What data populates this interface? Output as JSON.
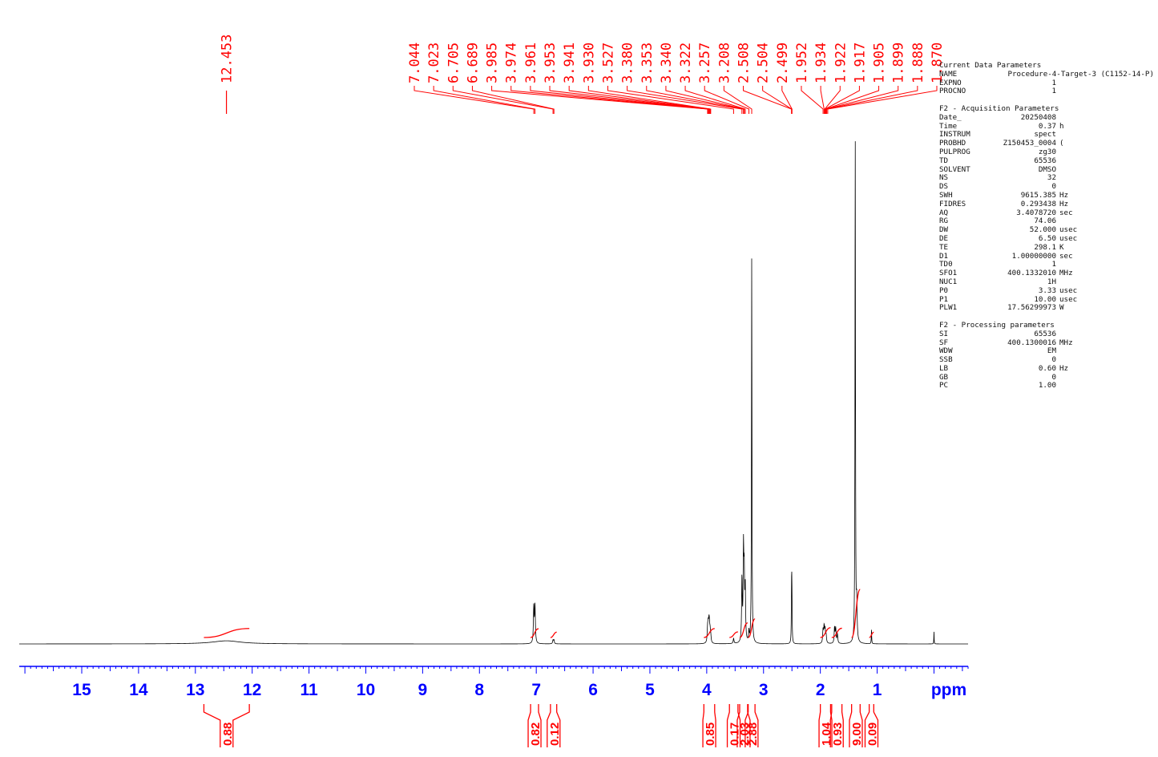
{
  "chart_data": {
    "type": "line",
    "title": "",
    "xlabel": "ppm",
    "ylabel": "",
    "xlim": [
      16.1,
      -0.6
    ],
    "x_reversed": true,
    "grid": false,
    "x_ticks": [
      "15",
      "14",
      "13",
      "12",
      "11",
      "10",
      "9",
      "8",
      "7",
      "6",
      "5",
      "4",
      "3",
      "2",
      "1",
      "ppm"
    ],
    "x_tick_values": [
      15,
      14,
      13,
      12,
      11,
      10,
      9,
      8,
      7,
      6,
      5,
      4,
      3,
      2,
      1
    ],
    "peak_labels": [
      "12.453",
      "7.044",
      "7.023",
      "6.705",
      "6.689",
      "3.985",
      "3.974",
      "3.961",
      "3.953",
      "3.941",
      "3.930",
      "3.527",
      "3.380",
      "3.353",
      "3.340",
      "3.322",
      "3.257",
      "3.208",
      "2.508",
      "2.504",
      "2.499",
      "1.952",
      "1.934",
      "1.922",
      "1.917",
      "1.905",
      "1.899",
      "1.888",
      "1.870"
    ],
    "peaks": [
      {
        "ppm": 12.453,
        "height": 0.006,
        "width": 0.3
      },
      {
        "ppm": 7.044,
        "height": 0.07,
        "width": 0.008
      },
      {
        "ppm": 7.023,
        "height": 0.07,
        "width": 0.008
      },
      {
        "ppm": 6.705,
        "height": 0.007,
        "width": 0.008
      },
      {
        "ppm": 6.689,
        "height": 0.007,
        "width": 0.008
      },
      {
        "ppm": 3.985,
        "height": 0.024,
        "width": 0.008
      },
      {
        "ppm": 3.974,
        "height": 0.03,
        "width": 0.008
      },
      {
        "ppm": 3.961,
        "height": 0.03,
        "width": 0.008
      },
      {
        "ppm": 3.953,
        "height": 0.024,
        "width": 0.008
      },
      {
        "ppm": 3.941,
        "height": 0.018,
        "width": 0.008
      },
      {
        "ppm": 3.93,
        "height": 0.012,
        "width": 0.008
      },
      {
        "ppm": 3.527,
        "height": 0.01,
        "width": 0.008
      },
      {
        "ppm": 3.38,
        "height": 0.12,
        "width": 0.007
      },
      {
        "ppm": 3.353,
        "height": 0.17,
        "width": 0.007
      },
      {
        "ppm": 3.34,
        "height": 0.12,
        "width": 0.007
      },
      {
        "ppm": 3.322,
        "height": 0.1,
        "width": 0.007
      },
      {
        "ppm": 3.257,
        "height": 0.02,
        "width": 0.007
      },
      {
        "ppm": 3.208,
        "height": 0.74,
        "width": 0.005
      },
      {
        "ppm": 2.508,
        "height": 0.06,
        "width": 0.004
      },
      {
        "ppm": 2.504,
        "height": 0.09,
        "width": 0.004
      },
      {
        "ppm": 2.499,
        "height": 0.06,
        "width": 0.004
      },
      {
        "ppm": 1.952,
        "height": 0.025,
        "width": 0.008
      },
      {
        "ppm": 1.934,
        "height": 0.03,
        "width": 0.008
      },
      {
        "ppm": 1.917,
        "height": 0.025,
        "width": 0.008
      },
      {
        "ppm": 1.899,
        "height": 0.015,
        "width": 0.008
      },
      {
        "ppm": 1.75,
        "height": 0.03,
        "width": 0.008
      },
      {
        "ppm": 1.73,
        "height": 0.028,
        "width": 0.008
      },
      {
        "ppm": 1.7,
        "height": 0.018,
        "width": 0.008
      },
      {
        "ppm": 1.386,
        "height": 0.98,
        "width": 0.005
      },
      {
        "ppm": 1.36,
        "height": 0.07,
        "width": 0.008
      },
      {
        "ppm": 1.1,
        "height": 0.027,
        "width": 0.004
      },
      {
        "ppm": 0.0,
        "height": 0.024,
        "width": 0.003
      }
    ],
    "integrals": [
      {
        "from": 12.85,
        "to": 12.05,
        "value": "0.88"
      },
      {
        "from": 7.1,
        "to": 6.96,
        "value": "0.82"
      },
      {
        "from": 6.75,
        "to": 6.64,
        "value": "0.12"
      },
      {
        "from": 4.05,
        "to": 3.86,
        "value": "0.85"
      },
      {
        "from": 3.6,
        "to": 3.45,
        "value": "0.17"
      },
      {
        "from": 3.42,
        "to": 3.28,
        "value": "2.03"
      },
      {
        "from": 3.27,
        "to": 3.15,
        "value": "2.88"
      },
      {
        "from": 2.0,
        "to": 1.82,
        "value": "1.04"
      },
      {
        "from": 1.8,
        "to": 1.62,
        "value": "0.93"
      },
      {
        "from": 1.45,
        "to": 1.3,
        "value": "9.00"
      },
      {
        "from": 1.14,
        "to": 1.06,
        "value": "0.09"
      }
    ],
    "colors": {
      "spectrum": "#000000",
      "annotations": "#ff0000",
      "axis": "#0000ff"
    }
  },
  "parameters": {
    "current": {
      "header": "Current Data Parameters",
      "name_key": "NAME",
      "name_value": "Procedure-4-Target-3 (C1152-14-P)",
      "rows": [
        {
          "k": "EXPNO",
          "v": "1",
          "u": ""
        },
        {
          "k": "PROCNO",
          "v": "1",
          "u": ""
        }
      ]
    },
    "acquisition": {
      "header": "F2 - Acquisition Parameters",
      "rows": [
        {
          "k": "Date_",
          "v": "20250408",
          "u": ""
        },
        {
          "k": "Time",
          "v": "0.37",
          "u": "h"
        },
        {
          "k": "INSTRUM",
          "v": "spect",
          "u": ""
        },
        {
          "k": "PROBHD",
          "v": "Z150453_0004",
          "u": "("
        },
        {
          "k": "PULPROG",
          "v": "zg30",
          "u": ""
        },
        {
          "k": "TD",
          "v": "65536",
          "u": ""
        },
        {
          "k": "SOLVENT",
          "v": "DMSO",
          "u": ""
        },
        {
          "k": "NS",
          "v": "32",
          "u": ""
        },
        {
          "k": "DS",
          "v": "0",
          "u": ""
        },
        {
          "k": "SWH",
          "v": "9615.385",
          "u": "Hz"
        },
        {
          "k": "FIDRES",
          "v": "0.293438",
          "u": "Hz"
        },
        {
          "k": "AQ",
          "v": "3.4078720",
          "u": "sec"
        },
        {
          "k": "RG",
          "v": "74.06",
          "u": ""
        },
        {
          "k": "DW",
          "v": "52.000",
          "u": "usec"
        },
        {
          "k": "DE",
          "v": "6.50",
          "u": "usec"
        },
        {
          "k": "TE",
          "v": "298.1",
          "u": "K"
        },
        {
          "k": "D1",
          "v": "1.00000000",
          "u": "sec"
        },
        {
          "k": "TD0",
          "v": "1",
          "u": ""
        },
        {
          "k": "SFO1",
          "v": "400.1332010",
          "u": "MHz"
        },
        {
          "k": "NUC1",
          "v": "1H",
          "u": ""
        },
        {
          "k": "P0",
          "v": "3.33",
          "u": "usec"
        },
        {
          "k": "P1",
          "v": "10.00",
          "u": "usec"
        },
        {
          "k": "PLW1",
          "v": "17.56299973",
          "u": "W"
        }
      ]
    },
    "processing": {
      "header": "F2 - Processing parameters",
      "rows": [
        {
          "k": "SI",
          "v": "65536",
          "u": ""
        },
        {
          "k": "SF",
          "v": "400.1300016",
          "u": "MHz"
        },
        {
          "k": "WDW",
          "v": "EM",
          "u": ""
        },
        {
          "k": "SSB",
          "v": "0",
          "u": ""
        },
        {
          "k": "LB",
          "v": "0.60",
          "u": "Hz"
        },
        {
          "k": "GB",
          "v": "0",
          "u": ""
        },
        {
          "k": "PC",
          "v": "1.00",
          "u": ""
        }
      ]
    }
  }
}
